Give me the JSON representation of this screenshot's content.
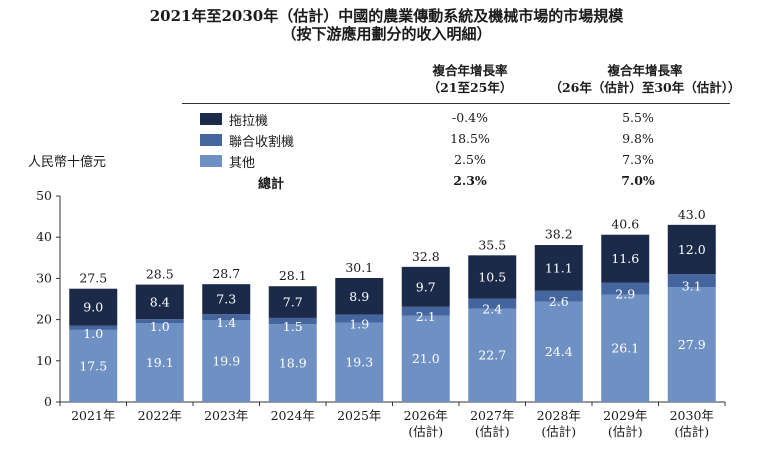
{
  "title_line1": "2021年至2030年（估計）中國的農業傳動系統及機械市場的市場規模",
  "title_line2": "（按下游應用劃分的收入明細）",
  "header_a": [
    "複合年增長率",
    "（21至25年）"
  ],
  "header_b": [
    "複合年增長率",
    "（26年（估計）至30年（估計））"
  ],
  "legend": [
    {
      "label": "拖拉機",
      "color": "#1c2a4a",
      "cagr_a": "-0.4%",
      "cagr_b": "5.5%"
    },
    {
      "label": "聯合收割機",
      "color": "#45659e",
      "cagr_a": "18.5%",
      "cagr_b": "9.8%"
    },
    {
      "label": "其他",
      "color": "#6f90c2",
      "cagr_a": "2.5%",
      "cagr_b": "7.3%"
    }
  ],
  "total": {
    "label": "總計",
    "cagr_a": "2.3%",
    "cagr_b": "7.0%"
  },
  "chart_data": {
    "type": "bar",
    "stacked": true,
    "ylabel": "人民幣十億元",
    "ylim": [
      0,
      50
    ],
    "yticks": [
      0,
      10,
      20,
      30,
      40,
      50
    ],
    "categories": [
      [
        "2021年"
      ],
      [
        "2022年"
      ],
      [
        "2023年"
      ],
      [
        "2024年"
      ],
      [
        "2025年"
      ],
      [
        "2026年",
        "(估計)"
      ],
      [
        "2027年",
        "(估計)"
      ],
      [
        "2028年",
        "(估計)"
      ],
      [
        "2029年",
        "(估計)"
      ],
      [
        "2030年",
        "(估計)"
      ]
    ],
    "series": [
      {
        "name": "其他",
        "color": "#6f90c2",
        "values": [
          17.5,
          19.1,
          19.9,
          18.9,
          19.3,
          21.0,
          22.7,
          24.4,
          26.1,
          27.9
        ]
      },
      {
        "name": "聯合收割機",
        "color": "#45659e",
        "values": [
          1.0,
          1.0,
          1.4,
          1.5,
          1.9,
          2.1,
          2.4,
          2.6,
          2.9,
          3.1
        ]
      },
      {
        "name": "拖拉機",
        "color": "#1c2a4a",
        "values": [
          9.0,
          8.4,
          7.3,
          7.7,
          8.9,
          9.7,
          10.5,
          11.1,
          11.6,
          12.0
        ]
      }
    ],
    "totals": [
      27.5,
      28.5,
      28.7,
      28.1,
      30.1,
      32.8,
      35.5,
      38.2,
      40.6,
      43.0
    ],
    "value_labels": [
      [
        "17.5",
        "19.1",
        "19.9",
        "18.9",
        "19.3",
        "21.0",
        "22.7",
        "24.4",
        "26.1",
        "27.9"
      ],
      [
        "1.0",
        "1.0",
        "1.4",
        "1.5",
        "1.9",
        "2.1",
        "2.4",
        "2.6",
        "2.9",
        "3.1"
      ],
      [
        "9.0",
        "8.4",
        "7.3",
        "7.7",
        "8.9",
        "9.7",
        "10.5",
        "11.1",
        "11.6",
        "12.0"
      ]
    ],
    "total_labels": [
      "27.5",
      "28.5",
      "28.7",
      "28.1",
      "30.1",
      "32.8",
      "35.5",
      "38.2",
      "40.6",
      "43.0"
    ],
    "grid": false,
    "legend": "top"
  }
}
